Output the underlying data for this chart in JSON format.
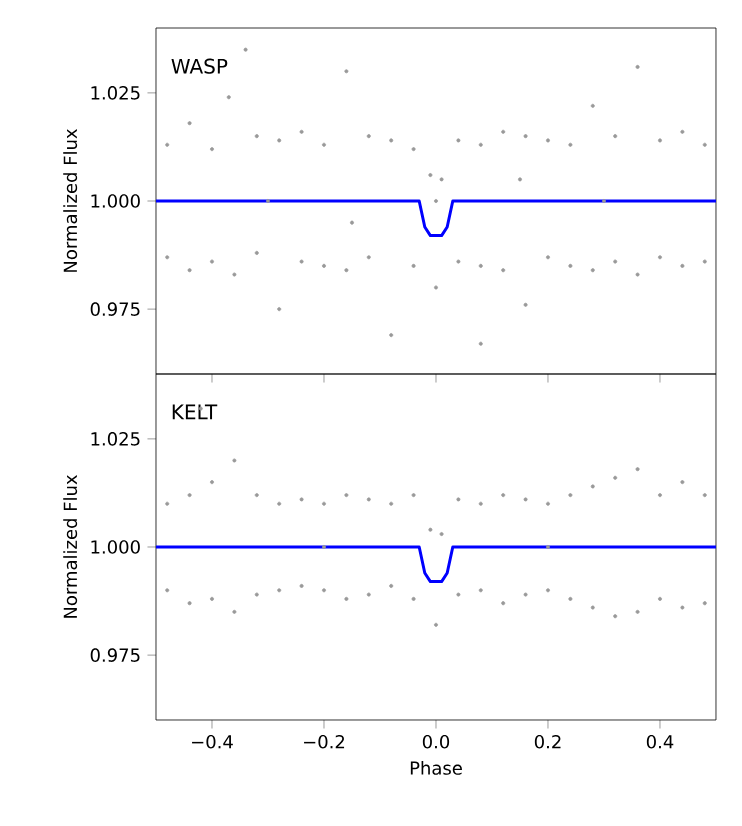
{
  "chart_data": [
    {
      "type": "scatter",
      "ylabel": "Normalized Flux",
      "annotations": [
        "WASP"
      ],
      "xlim": [
        -0.5,
        0.5
      ],
      "ylim": [
        0.96,
        1.04
      ],
      "xticks": [
        {
          "value": -0.4,
          "label": null
        },
        {
          "value": -0.2,
          "label": null
        },
        {
          "value": 0,
          "label": null
        },
        {
          "value": 0.2,
          "label": null
        },
        {
          "value": 0.4,
          "label": null
        }
      ],
      "yticks": [
        {
          "value": 0.975,
          "label": "0.975"
        },
        {
          "value": 1.0,
          "label": "1.000"
        },
        {
          "value": 1.025,
          "label": "1.025"
        }
      ],
      "tick_labels": "y",
      "marker": "circle",
      "series": [
        {
          "color": "#999999",
          "x": [
            -0.48,
            -0.48,
            -0.44,
            -0.44,
            -0.4,
            -0.4,
            -0.37,
            -0.36,
            -0.32,
            -0.32,
            -0.28,
            -0.28,
            -0.24,
            -0.24,
            -0.2,
            -0.2,
            -0.16,
            -0.16,
            -0.12,
            -0.12,
            -0.08,
            -0.08,
            -0.04,
            -0.04,
            -0.01,
            0.0,
            0.01,
            0.04,
            0.04,
            0.08,
            0.08,
            0.12,
            0.12,
            0.16,
            0.16,
            0.2,
            0.2,
            0.24,
            0.24,
            0.28,
            0.28,
            0.32,
            0.32,
            0.36,
            0.36,
            0.4,
            0.4,
            0.44,
            0.44,
            0.48,
            0.48,
            -0.34,
            0.08,
            0.0,
            -0.3,
            0.3,
            0.15,
            -0.15
          ],
          "values": [
            1.013,
            0.987,
            1.018,
            0.984,
            1.012,
            0.986,
            1.024,
            0.983,
            1.015,
            0.988,
            1.014,
            0.975,
            1.016,
            0.986,
            1.013,
            0.985,
            1.03,
            0.984,
            1.015,
            0.987,
            1.014,
            0.969,
            1.012,
            0.985,
            1.006,
            0.98,
            1.005,
            1.014,
            0.986,
            1.013,
            0.985,
            1.016,
            0.984,
            1.015,
            0.976,
            1.014,
            0.987,
            1.013,
            0.985,
            1.022,
            0.984,
            1.015,
            0.986,
            1.031,
            0.983,
            1.014,
            0.987,
            1.016,
            0.985,
            1.013,
            0.986,
            1.035,
            0.967,
            1.0,
            1.0,
            1.0,
            1.005,
            0.995
          ]
        },
        {
          "type": "line",
          "color": "#0000ff",
          "marker": "none",
          "x": [
            -0.5,
            -0.03,
            -0.02,
            -0.01,
            0.01,
            0.02,
            0.03,
            0.5
          ],
          "values": [
            1.0,
            1.0,
            0.994,
            0.992,
            0.992,
            0.994,
            1.0,
            1.0
          ]
        }
      ]
    },
    {
      "type": "scatter",
      "xlabel": "Phase",
      "ylabel": "Normalized Flux",
      "annotations": [
        "KELT"
      ],
      "xlim": [
        -0.5,
        0.5
      ],
      "ylim": [
        0.96,
        1.04
      ],
      "xticks": [
        {
          "value": -0.4,
          "label": "−0.4"
        },
        {
          "value": -0.2,
          "label": "−0.2"
        },
        {
          "value": 0,
          "label": "0.0"
        },
        {
          "value": 0.2,
          "label": "0.2"
        },
        {
          "value": 0.4,
          "label": "0.4"
        }
      ],
      "yticks": [
        {
          "value": 0.975,
          "label": "0.975"
        },
        {
          "value": 1.0,
          "label": "1.000"
        },
        {
          "value": 1.025,
          "label": "1.025"
        }
      ],
      "marker": "circle",
      "series": [
        {
          "color": "#999999",
          "x": [
            -0.48,
            -0.48,
            -0.44,
            -0.44,
            -0.4,
            -0.4,
            -0.36,
            -0.36,
            -0.32,
            -0.32,
            -0.28,
            -0.28,
            -0.24,
            -0.24,
            -0.2,
            -0.2,
            -0.16,
            -0.16,
            -0.12,
            -0.12,
            -0.08,
            -0.08,
            -0.04,
            -0.04,
            -0.01,
            0.0,
            0.01,
            0.04,
            0.04,
            0.08,
            0.08,
            0.12,
            0.12,
            0.16,
            0.16,
            0.2,
            0.2,
            0.24,
            0.24,
            0.28,
            0.28,
            0.32,
            0.32,
            0.36,
            0.36,
            0.4,
            0.4,
            0.44,
            0.44,
            0.48,
            0.48,
            -0.42,
            0.2,
            -0.2
          ],
          "values": [
            1.01,
            0.99,
            1.012,
            0.987,
            1.015,
            0.988,
            1.02,
            0.985,
            1.012,
            0.989,
            1.01,
            0.99,
            1.011,
            0.991,
            1.01,
            0.99,
            1.012,
            0.988,
            1.011,
            0.989,
            1.01,
            0.991,
            1.012,
            0.988,
            1.004,
            0.982,
            1.003,
            1.011,
            0.989,
            1.01,
            0.99,
            1.012,
            0.987,
            1.011,
            0.989,
            1.01,
            0.99,
            1.012,
            0.988,
            1.014,
            0.986,
            1.016,
            0.984,
            1.018,
            0.985,
            1.012,
            0.988,
            1.015,
            0.986,
            1.012,
            0.987,
            1.032,
            1.0,
            1.0
          ]
        },
        {
          "type": "line",
          "color": "#0000ff",
          "marker": "none",
          "x": [
            -0.5,
            -0.03,
            -0.02,
            -0.01,
            0.01,
            0.02,
            0.03,
            0.5
          ],
          "values": [
            1.0,
            1.0,
            0.994,
            0.992,
            0.992,
            0.994,
            1.0,
            1.0
          ]
        }
      ]
    }
  ]
}
